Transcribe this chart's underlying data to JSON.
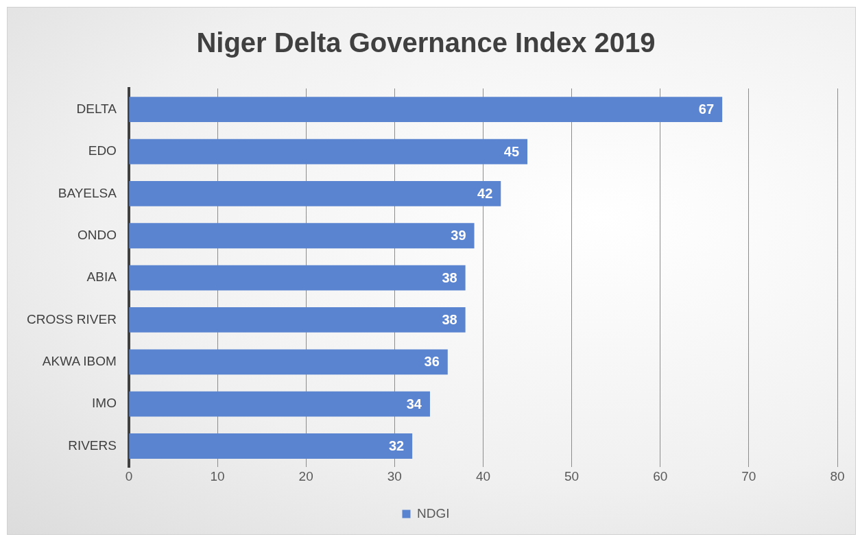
{
  "chart_data": {
    "type": "bar",
    "title": "Niger Delta Governance Index 2019",
    "orientation": "horizontal",
    "categories": [
      "DELTA",
      "EDO",
      "BAYELSA",
      "ONDO",
      "ABIA",
      "CROSS RIVER",
      "AKWA IBOM",
      "IMO",
      "RIVERS"
    ],
    "series": [
      {
        "name": "NDGI",
        "color": "#5b84d0",
        "values": [
          67,
          45,
          42,
          39,
          38,
          38,
          36,
          34,
          32
        ]
      }
    ],
    "xlim": [
      0,
      80
    ],
    "xticks": [
      0,
      10,
      20,
      30,
      40,
      50,
      60,
      70,
      80
    ],
    "grid": "x",
    "legend": "bottom",
    "data_labels": true
  }
}
